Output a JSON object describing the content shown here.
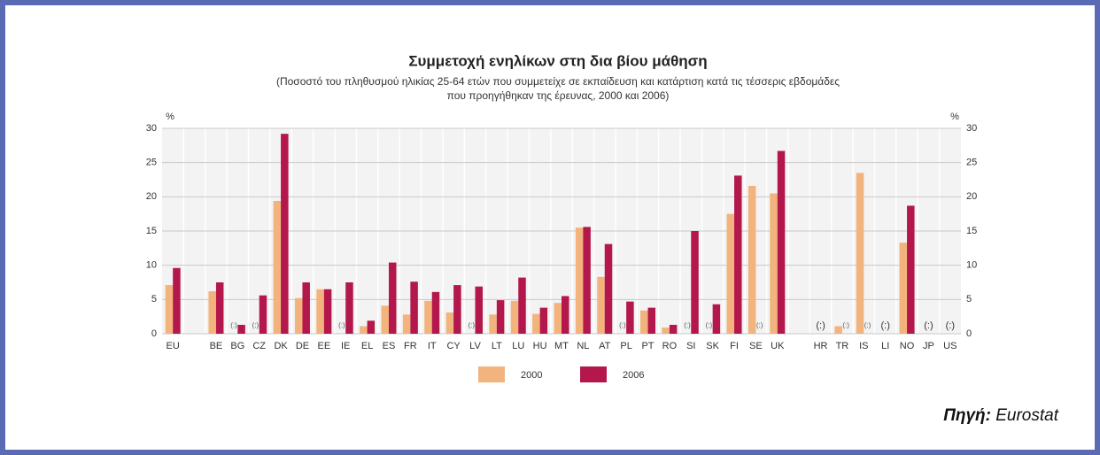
{
  "chart_data": {
    "type": "bar",
    "title": "Συμμετοχή ενηλίκων στη δια βίου μάθηση",
    "subtitle": [
      "(Ποσοστό του πληθυσμού ηλικίας 25-64 ετών που συμμετείχε σε εκπαίδευση και κατάρτιση κατά τις τέσσερις εβδομάδες",
      "που προηγήθηκαν της έρευνας, 2000 και 2006)"
    ],
    "y_label": "%",
    "categories": [
      "EU",
      null,
      "BE",
      "BG",
      "CZ",
      "DK",
      "DE",
      "EE",
      "IE",
      "EL",
      "ES",
      "FR",
      "IT",
      "CY",
      "LV",
      "LT",
      "LU",
      "HU",
      "MT",
      "NL",
      "AT",
      "PL",
      "PT",
      "RO",
      "SI",
      "SK",
      "FI",
      "SE",
      "UK",
      null,
      "HR",
      "TR",
      "IS",
      "LI",
      "NO",
      "JP",
      "US"
    ],
    "series": [
      {
        "name": "2000",
        "color": "#f2b37c",
        "values": [
          7.1,
          null,
          6.2,
          null,
          null,
          19.4,
          5.2,
          6.5,
          null,
          1.1,
          4.1,
          2.8,
          4.8,
          3.1,
          null,
          2.8,
          4.8,
          2.9,
          4.5,
          15.5,
          8.3,
          null,
          3.4,
          0.9,
          null,
          null,
          17.5,
          21.6,
          20.5,
          null,
          null,
          1.1,
          23.5,
          null,
          13.3,
          null,
          null
        ],
        "value_labels": [
          null,
          null,
          null,
          "(:)",
          "(:)",
          null,
          null,
          null,
          "(:)",
          null,
          null,
          null,
          null,
          null,
          "(:)",
          null,
          null,
          null,
          null,
          null,
          null,
          "(:)",
          null,
          null,
          "(:)",
          "(:)",
          null,
          null,
          null,
          null,
          "(:)",
          null,
          null,
          "(:)",
          null,
          "(:)",
          "(:)"
        ]
      },
      {
        "name": "2006",
        "color": "#b3174b",
        "values": [
          9.6,
          null,
          7.5,
          1.3,
          5.6,
          29.2,
          7.5,
          6.5,
          7.5,
          1.9,
          10.4,
          7.6,
          6.1,
          7.1,
          6.9,
          4.9,
          8.2,
          3.8,
          5.5,
          15.6,
          13.1,
          4.7,
          3.8,
          1.3,
          15.0,
          4.3,
          23.1,
          null,
          26.7,
          null,
          null,
          null,
          null,
          null,
          18.7,
          null,
          null
        ],
        "value_labels": [
          null,
          null,
          null,
          null,
          null,
          null,
          null,
          null,
          null,
          null,
          null,
          null,
          null,
          null,
          null,
          null,
          null,
          null,
          null,
          null,
          null,
          null,
          null,
          null,
          null,
          null,
          null,
          "(:)",
          null,
          null,
          null,
          "(:)",
          "(:)",
          null,
          null,
          null,
          null
        ]
      }
    ],
    "ylim": [
      0,
      30
    ],
    "yticks": [
      0,
      5,
      10,
      15,
      20,
      25,
      30
    ],
    "grid": true,
    "source_label": "Πηγή:",
    "source": "Eurostat"
  }
}
